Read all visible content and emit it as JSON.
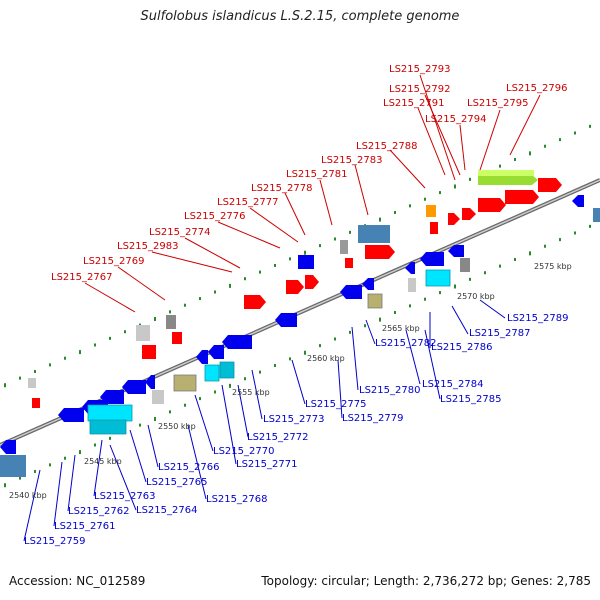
{
  "title": "Sulfolobus islandicus L.S.2.15, complete genome",
  "footer": {
    "accession": "Accession: NC_012589",
    "topology": "Topology: circular; Length: 2,736,272 bp; Genes: 2,785"
  },
  "colors": {
    "top_label": "#cc0000",
    "bottom_label": "#0000cc",
    "forward_gene": "#ff0000",
    "reverse_gene": "#0000ee",
    "backbone": "#8a8a8a",
    "tick": "#2a8a2a"
  },
  "ticks": [
    {
      "pos": 2540,
      "label": "2540 kbp"
    },
    {
      "pos": 2545,
      "label": "2545 kbp"
    },
    {
      "pos": 2550,
      "label": "2550 kbp"
    },
    {
      "pos": 2555,
      "label": "2555 kbp"
    },
    {
      "pos": 2560,
      "label": "2560 kbp"
    },
    {
      "pos": 2565,
      "label": "2565 kbp"
    },
    {
      "pos": 2570,
      "label": "2570 kbp"
    },
    {
      "pos": 2575,
      "label": "2575 kbp"
    }
  ],
  "top_labels": [
    "LS215_2793",
    "LS215_2792",
    "LS215_2796",
    "LS215_2791",
    "LS215_2795",
    "LS215_2794",
    "LS215_2788",
    "LS215_2783",
    "LS215_2781",
    "LS215_2778",
    "LS215_2777",
    "LS215_2776",
    "LS215_2774",
    "LS215_2983",
    "LS215_2769",
    "LS215_2767"
  ],
  "bottom_labels": [
    "LS215_2789",
    "LS215_2787",
    "LS215_2786",
    "LS215_2782",
    "LS215_2784",
    "LS215_2780",
    "LS215_2785",
    "LS215_2775",
    "LS215_2779",
    "LS215_2773",
    "LS215_2772",
    "LS215_2770",
    "LS215_2771",
    "LS215_2766",
    "LS215_2765",
    "LS215_2768",
    "LS215_2763",
    "LS215_2764",
    "LS215_2762",
    "LS215_2761",
    "LS215_2759"
  ]
}
